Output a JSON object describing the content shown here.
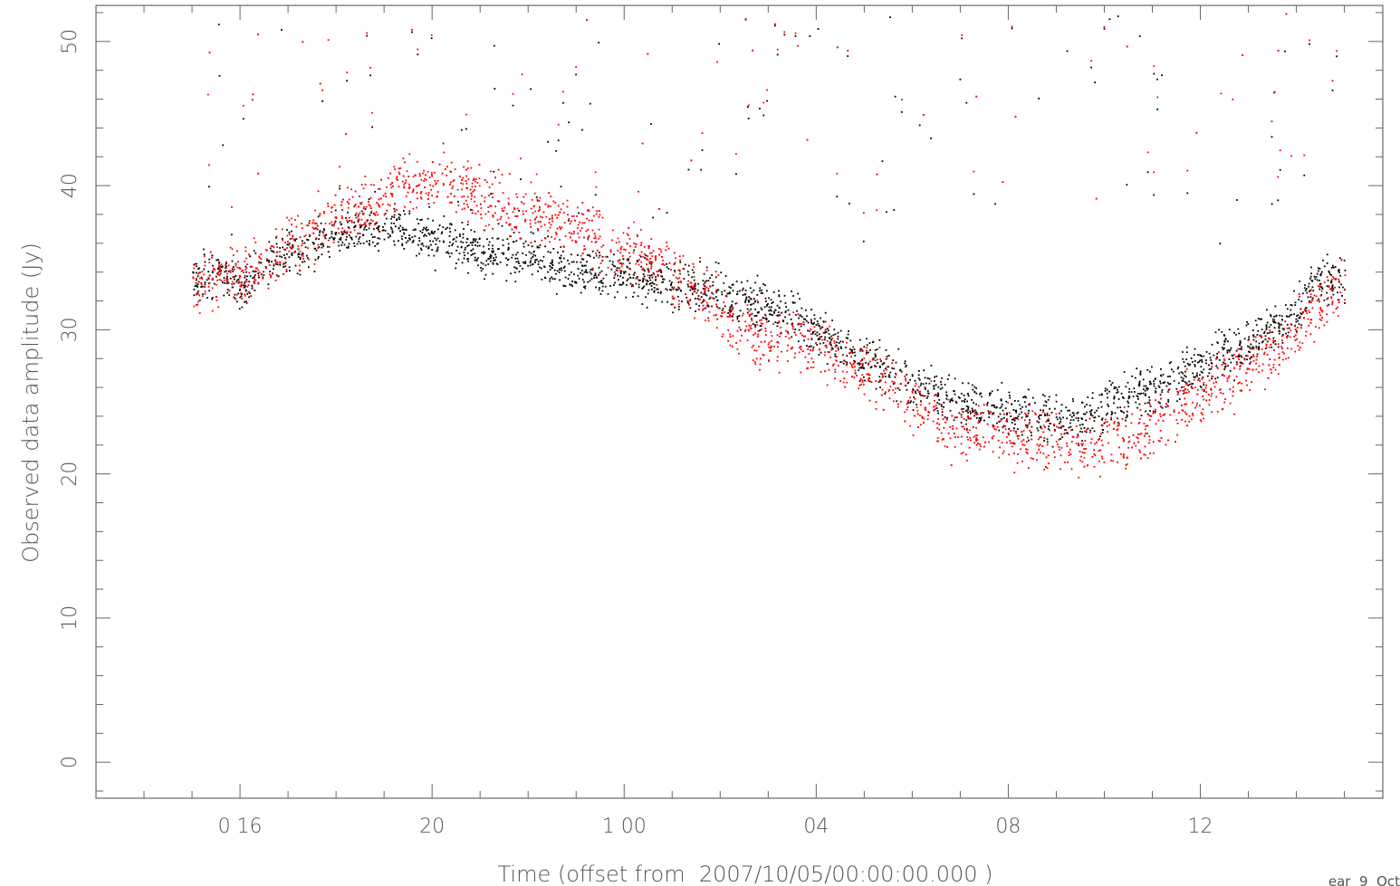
{
  "chart_data": {
    "type": "scatter",
    "title": "",
    "xlabel": "Time (offset from  2007/10/05/00:00:00.000 )",
    "ylabel": "Observed data amplitude (Jy)",
    "xlim": [
      13.0,
      39.8
    ],
    "ylim": [
      -2.5,
      52.5
    ],
    "x_unit": "hours after 2007/10/05 00:00",
    "x_ticks": [
      {
        "value": 16,
        "label": "0 16"
      },
      {
        "value": 20,
        "label": "20"
      },
      {
        "value": 24,
        "label": "1 00"
      },
      {
        "value": 28,
        "label": "04"
      },
      {
        "value": 32,
        "label": "08"
      },
      {
        "value": 36,
        "label": "12"
      }
    ],
    "y_ticks": [
      {
        "value": 0,
        "label": "0"
      },
      {
        "value": 10,
        "label": "10"
      },
      {
        "value": 20,
        "label": "20"
      },
      {
        "value": 30,
        "label": "30"
      },
      {
        "value": 40,
        "label": "40"
      },
      {
        "value": 50,
        "label": "50"
      }
    ],
    "grid": false,
    "legend": "none",
    "series": [
      {
        "color": "#000000",
        "trend_x": [
          15.0,
          15.5,
          16.0,
          16.5,
          17.0,
          17.5,
          18.0,
          18.5,
          19.0,
          19.5,
          20.0,
          20.5,
          21.0,
          21.5,
          22.0,
          22.5,
          23.0,
          23.5,
          24.0,
          24.5,
          25.0,
          25.5,
          26.0,
          26.5,
          27.0,
          27.5,
          28.0,
          28.5,
          29.0,
          29.5,
          30.0,
          30.5,
          31.0,
          31.5,
          32.0,
          32.5,
          33.0,
          33.5,
          34.0,
          34.5,
          35.0,
          35.5,
          36.0,
          36.5,
          37.0,
          37.5,
          38.0,
          38.5,
          39.0
        ],
        "trend_y": [
          33.5,
          34.0,
          33.0,
          34.5,
          35.5,
          36.0,
          36.5,
          37.0,
          37.5,
          36.5,
          36.5,
          36.0,
          35.5,
          35.5,
          35.0,
          34.5,
          34.0,
          34.0,
          34.0,
          33.5,
          33.0,
          33.0,
          32.5,
          32.0,
          31.5,
          31.0,
          30.0,
          29.0,
          28.0,
          27.0,
          26.3,
          25.6,
          25.0,
          24.6,
          24.3,
          24.0,
          24.0,
          23.8,
          24.5,
          25.5,
          26.0,
          26.5,
          27.5,
          28.5,
          29.0,
          30.0,
          31.5,
          33.5,
          33.5
        ],
        "band_halfwidth": 1.2,
        "outlier_range": [
          36,
          52
        ]
      },
      {
        "color": "#ff0000",
        "trend_x": [
          15.0,
          15.5,
          16.0,
          16.5,
          17.0,
          17.5,
          18.0,
          18.5,
          19.0,
          19.5,
          20.0,
          20.5,
          21.0,
          21.5,
          22.0,
          22.5,
          23.0,
          23.5,
          24.0,
          24.5,
          25.0,
          25.5,
          26.0,
          26.5,
          27.0,
          27.5,
          28.0,
          28.5,
          29.0,
          29.5,
          30.0,
          30.5,
          31.0,
          31.5,
          32.0,
          32.5,
          33.0,
          33.5,
          34.0,
          34.5,
          35.0,
          35.5,
          36.0,
          36.5,
          37.0,
          37.5,
          38.0,
          38.5,
          39.0
        ],
        "trend_y": [
          33.0,
          33.5,
          34.0,
          34.5,
          36.0,
          37.0,
          37.5,
          38.5,
          39.5,
          40.0,
          40.5,
          40.0,
          39.5,
          38.5,
          38.0,
          37.5,
          37.0,
          36.5,
          35.5,
          35.0,
          34.0,
          33.0,
          31.0,
          30.0,
          29.0,
          29.5,
          29.0,
          28.0,
          27.0,
          26.0,
          25.0,
          24.0,
          23.2,
          23.0,
          22.8,
          22.5,
          22.3,
          22.0,
          22.0,
          22.5,
          23.5,
          24.5,
          25.5,
          26.5,
          27.5,
          28.5,
          30.0,
          32.0,
          33.0
        ],
        "band_halfwidth": 1.5,
        "outlier_range": [
          38,
          52
        ]
      }
    ],
    "corner_note": "ear  9  Oct"
  }
}
